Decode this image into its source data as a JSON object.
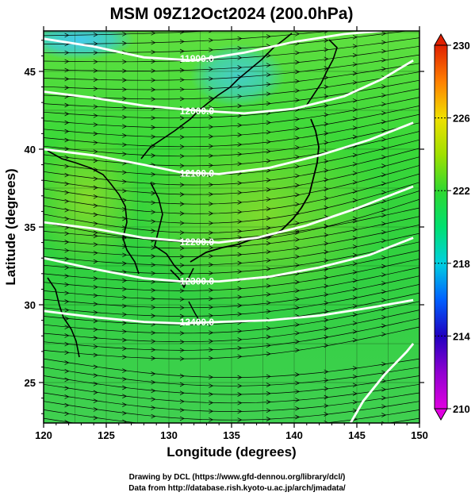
{
  "chart_data": {
    "type": "heatmap",
    "title": "MSM 09Z12Oct2024 (200.0hPa)",
    "xlabel": "Longitude (degrees)",
    "ylabel": "Latitude  (degrees)",
    "xlim": [
      120,
      150
    ],
    "ylim": [
      22.4,
      47.6
    ],
    "xticks": [
      "120",
      "125",
      "130",
      "135",
      "140",
      "145",
      "150"
    ],
    "yticks": [
      "25",
      "30",
      "35",
      "40",
      "45"
    ],
    "colorbar": {
      "min": 210,
      "max": 230,
      "ticks": [
        "230",
        "226",
        "222",
        "218",
        "214",
        "210"
      ],
      "colors": [
        "#e000e0",
        "#2000c0",
        "#0060ff",
        "#00d0e0",
        "#00e070",
        "#40d030",
        "#a0e000",
        "#f0e000",
        "#ff8000",
        "#e02000"
      ]
    },
    "contours": [
      {
        "label": "11900.0",
        "points": [
          [
            120,
            47.1
          ],
          [
            124,
            46.6
          ],
          [
            128,
            45.9
          ],
          [
            132,
            45.7
          ],
          [
            136,
            46.2
          ],
          [
            140,
            46.9
          ],
          [
            144,
            47.4
          ],
          [
            147,
            47.6
          ]
        ]
      },
      {
        "label": "12000.0",
        "points": [
          [
            120,
            43.7
          ],
          [
            124,
            43.3
          ],
          [
            128,
            42.8
          ],
          [
            132,
            42.5
          ],
          [
            136,
            42.3
          ],
          [
            140,
            42.6
          ],
          [
            144,
            43.4
          ],
          [
            147,
            44.5
          ],
          [
            149.5,
            45.7
          ]
        ]
      },
      {
        "label": "12100.0",
        "points": [
          [
            120,
            40.0
          ],
          [
            124,
            39.6
          ],
          [
            128,
            39.0
          ],
          [
            131,
            38.5
          ],
          [
            134,
            38.4
          ],
          [
            138,
            38.8
          ],
          [
            142,
            39.6
          ],
          [
            146,
            40.6
          ],
          [
            149.5,
            41.7
          ]
        ]
      },
      {
        "label": "12200.0",
        "points": [
          [
            120,
            35.3
          ],
          [
            124,
            34.9
          ],
          [
            128,
            34.3
          ],
          [
            131,
            34.1
          ],
          [
            134,
            34.0
          ],
          [
            137,
            34.3
          ],
          [
            141,
            35.1
          ],
          [
            145,
            36.2
          ],
          [
            149.5,
            37.6
          ]
        ]
      },
      {
        "label": "12300.0",
        "points": [
          [
            120,
            33.0
          ],
          [
            124,
            32.3
          ],
          [
            128,
            31.7
          ],
          [
            131,
            31.5
          ],
          [
            134,
            31.5
          ],
          [
            138,
            31.8
          ],
          [
            142,
            32.4
          ],
          [
            146,
            33.2
          ],
          [
            149.5,
            34.3
          ]
        ]
      },
      {
        "label": "12400.0",
        "points": [
          [
            120,
            29.6
          ],
          [
            124,
            29.2
          ],
          [
            128,
            28.9
          ],
          [
            131,
            28.8
          ],
          [
            134,
            28.9
          ],
          [
            138,
            29.0
          ],
          [
            142,
            29.3
          ],
          [
            146,
            29.8
          ],
          [
            149.5,
            30.3
          ]
        ]
      },
      {
        "label": "",
        "points": [
          [
            144.5,
            22.4
          ],
          [
            145.5,
            23.8
          ],
          [
            147.2,
            25.5
          ],
          [
            149,
            27.0
          ],
          [
            149.5,
            27.5
          ]
        ]
      }
    ],
    "colormap_stops": [
      {
        "value": 210,
        "color": "#e000e0"
      },
      {
        "value": 212,
        "color": "#9000d0"
      },
      {
        "value": 214,
        "color": "#2000c0"
      },
      {
        "value": 216,
        "color": "#0060ff"
      },
      {
        "value": 218,
        "color": "#00d0e0"
      },
      {
        "value": 220,
        "color": "#00e070"
      },
      {
        "value": 222,
        "color": "#30d830"
      },
      {
        "value": 224,
        "color": "#a0e000"
      },
      {
        "value": 226,
        "color": "#f0e000"
      },
      {
        "value": 228,
        "color": "#ff8000"
      },
      {
        "value": 230,
        "color": "#e02000"
      }
    ]
  },
  "credits": {
    "line1": "Drawing by DCL (https://www.gfd-dennou.org/library/dcl/)",
    "line2": "Data from http://database.rish.kyoto-u.ac.jp/arch/jmadata/"
  }
}
